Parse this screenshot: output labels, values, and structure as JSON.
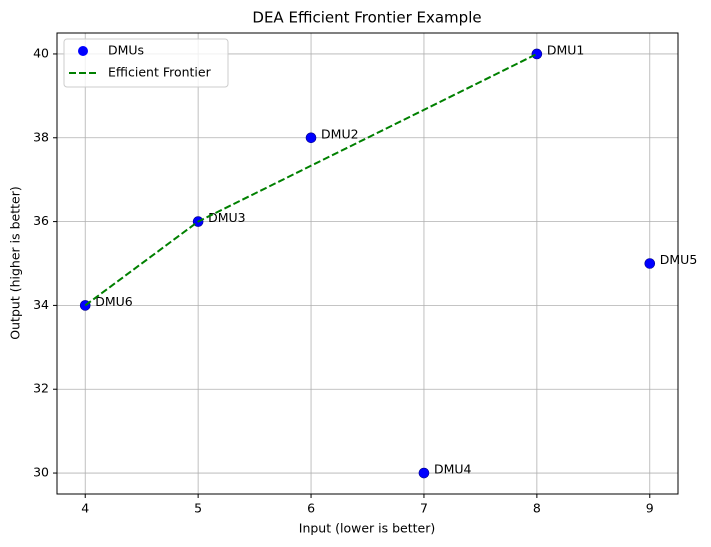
{
  "chart_data": {
    "type": "scatter",
    "title": "DEA Efficient Frontier Example",
    "x_label": "Input (lower is better)",
    "y_label": "Output (higher is better)",
    "series": [
      {
        "name": "DMUs",
        "color": "#0000ff",
        "x": [
          8,
          6,
          5,
          7,
          9,
          4
        ],
        "values": [
          40,
          38,
          36,
          30,
          35,
          34
        ],
        "labels": [
          "DMU1",
          "DMU2",
          "DMU3",
          "DMU4",
          "DMU5",
          "DMU6"
        ]
      },
      {
        "name": "Efficient Frontier",
        "type": "line",
        "dashed": true,
        "color": "#008000",
        "x": [
          4,
          5,
          8
        ],
        "values": [
          34,
          36,
          40
        ]
      }
    ],
    "xlim": [
      3.75,
      9.25
    ],
    "ylim": [
      29.5,
      40.5
    ],
    "xticks": [
      4,
      5,
      6,
      7,
      8,
      9
    ],
    "yticks": [
      30,
      32,
      34,
      36,
      38,
      40
    ],
    "grid": true,
    "legend_position": "upper-left"
  }
}
